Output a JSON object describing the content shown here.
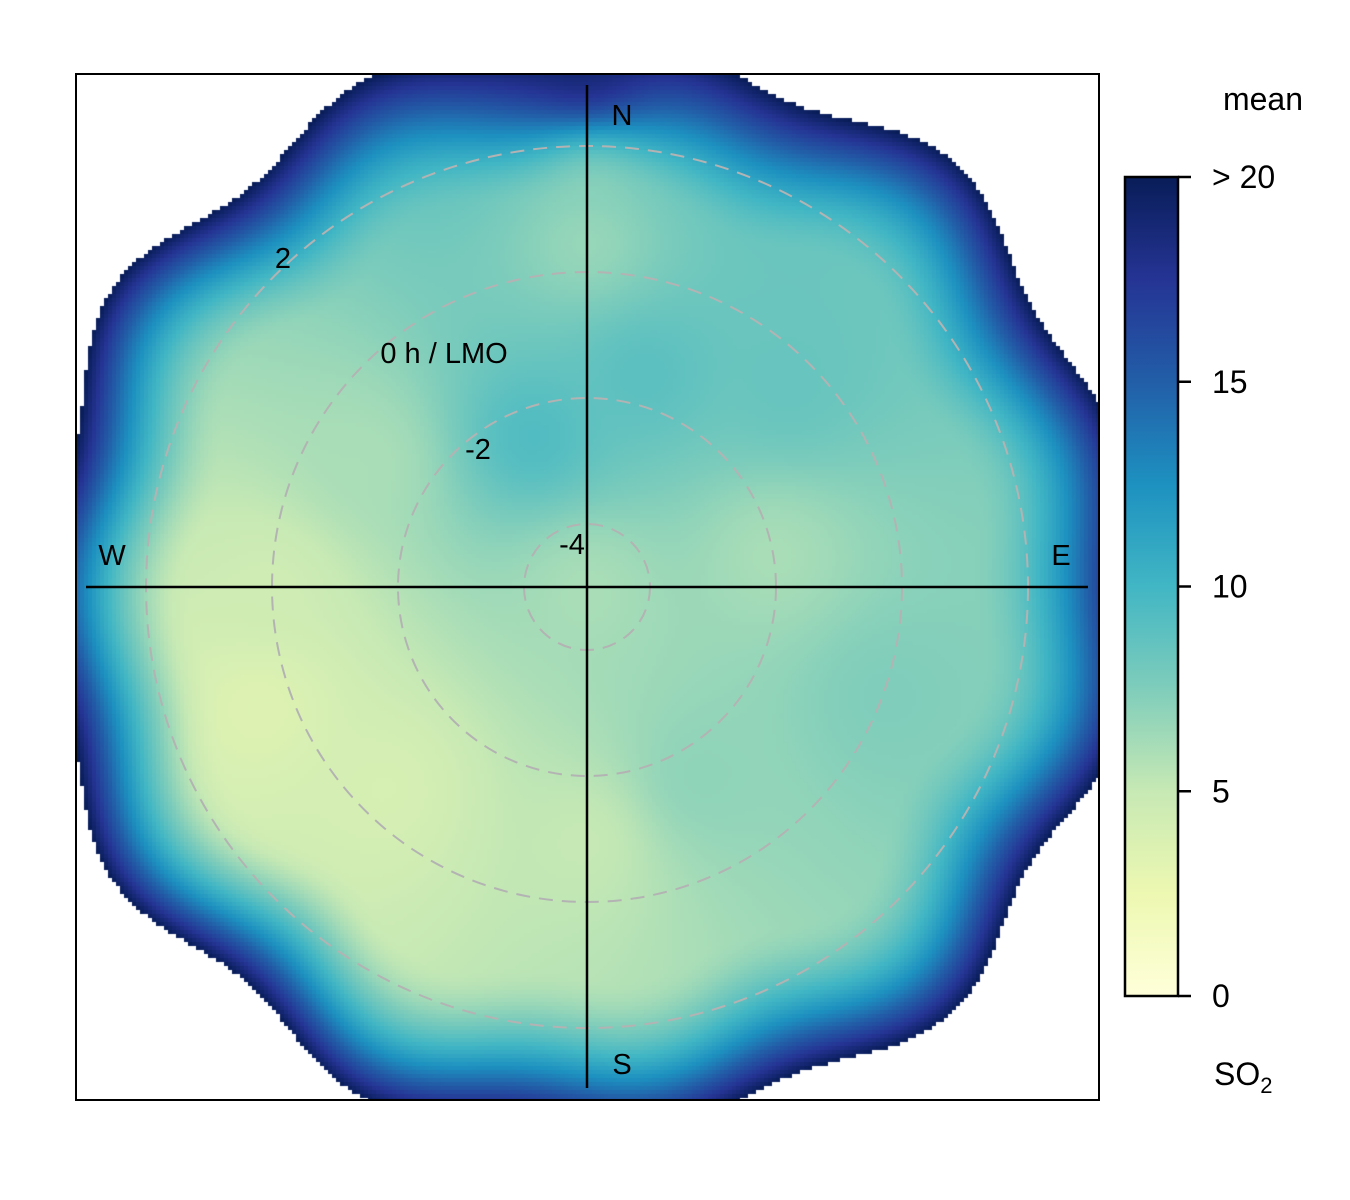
{
  "chart_data": {
    "type": "heatmap",
    "subtype": "polar-plot",
    "directions": {
      "north": "N",
      "south": "S",
      "east": "E",
      "west": "W"
    },
    "radial_axis": {
      "title": "0 h / LMO",
      "tick_labels": [
        "-4",
        "-2",
        "2"
      ],
      "rings": [
        -4,
        -2,
        0,
        2
      ],
      "range": [
        -5,
        3.6
      ]
    },
    "colorbar": {
      "title": "mean",
      "pollutant": "SO",
      "pollutant_subscript": "2",
      "range": [
        0,
        20
      ],
      "ticks": [
        {
          "value": 0,
          "label": "0"
        },
        {
          "value": 5,
          "label": "5"
        },
        {
          "value": 10,
          "label": "10"
        },
        {
          "value": 15,
          "label": "15"
        },
        {
          "value": 20,
          "label": "> 20"
        }
      ],
      "palette": [
        "#ffffd9",
        "#edf8b1",
        "#c7e9b4",
        "#7fcdbb",
        "#41b6c4",
        "#1d91c0",
        "#225ea8",
        "#253494",
        "#081d58"
      ]
    },
    "surface_samples": [
      {
        "direction_deg": 0,
        "radius": 3.2,
        "value": 17
      },
      {
        "direction_deg": 0,
        "radius": 1.5,
        "value": 7
      },
      {
        "direction_deg": 0,
        "radius": 0.5,
        "value": 6.5
      },
      {
        "direction_deg": 15,
        "radius": -1.5,
        "value": 9
      },
      {
        "direction_deg": 340,
        "radius": -2.5,
        "value": 9.5
      },
      {
        "direction_deg": 45,
        "radius": -0.5,
        "value": 8.5
      },
      {
        "direction_deg": 80,
        "radius": -2,
        "value": 6
      },
      {
        "direction_deg": 110,
        "radius": 0,
        "value": 7.5
      },
      {
        "direction_deg": 150,
        "radius": -1.5,
        "value": 7
      },
      {
        "direction_deg": 180,
        "radius": -1,
        "value": 5
      },
      {
        "direction_deg": 225,
        "radius": -0.5,
        "value": 4
      },
      {
        "direction_deg": 250,
        "radius": 0.5,
        "value": 3.5
      },
      {
        "direction_deg": 270,
        "radius": 0,
        "value": 4.5
      },
      {
        "direction_deg": 300,
        "radius": -1,
        "value": 6
      },
      {
        "direction_deg": 0,
        "radius": -5,
        "value": 6
      }
    ],
    "edge_value": 20,
    "grid": true
  }
}
